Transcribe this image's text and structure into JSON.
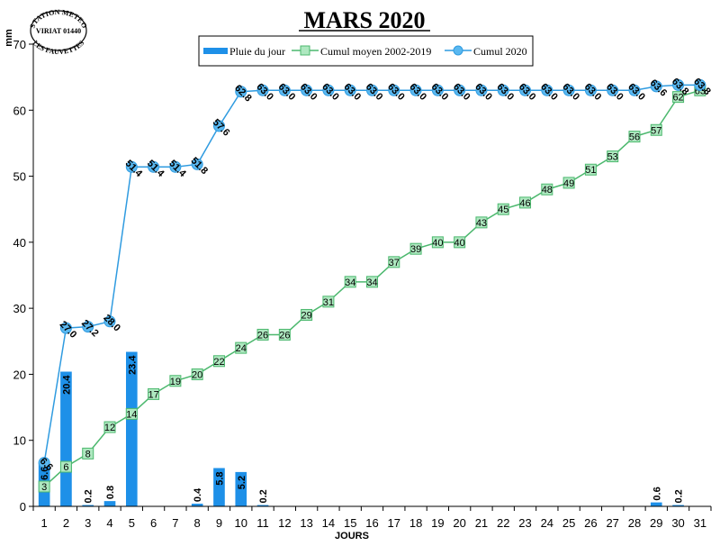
{
  "chart_data": {
    "type": "bar+line",
    "title": "MARS 2020",
    "ylabel": "mm",
    "xlabel": "JOURS",
    "ylim": [
      0,
      70
    ],
    "yticks": [
      0,
      10,
      20,
      30,
      40,
      50,
      60,
      70
    ],
    "categories": [
      1,
      2,
      3,
      4,
      5,
      6,
      7,
      8,
      9,
      10,
      11,
      12,
      13,
      14,
      15,
      16,
      17,
      18,
      19,
      20,
      21,
      22,
      23,
      24,
      25,
      26,
      27,
      28,
      29,
      30,
      31
    ],
    "legend_position": "top-center",
    "series": [
      {
        "name": "Pluie du jour",
        "kind": "bar",
        "color": "#1e90e8",
        "values": [
          6.6,
          20.4,
          0.2,
          0.8,
          23.4,
          0,
          0,
          0.4,
          5.8,
          5.2,
          0.2,
          0,
          0,
          0,
          0,
          0,
          0,
          0,
          0,
          0,
          0,
          0,
          0,
          0,
          0,
          0,
          0,
          0,
          0.6,
          0.2,
          0
        ],
        "labels": [
          "6.6",
          "20.4",
          "0.2",
          "0.8",
          "23.4",
          "",
          "",
          "0.4",
          "5.8",
          "5.2",
          "0.2",
          "",
          "",
          "",
          "",
          "",
          "",
          "",
          "",
          "",
          "",
          "",
          "",
          "",
          "",
          "",
          "",
          "",
          "0.6",
          "0.2",
          ""
        ]
      },
      {
        "name": "Cumul moyen 2002-2019",
        "kind": "line",
        "color": "#4cb86e",
        "marker_fill": "#aee8c0",
        "values": [
          3,
          6,
          8,
          12,
          14,
          17,
          19,
          20,
          22,
          24,
          26,
          26,
          29,
          31,
          34,
          34,
          37,
          39,
          40,
          40,
          43,
          45,
          46,
          48,
          49,
          51,
          53,
          56,
          57,
          62,
          63
        ],
        "labels": [
          "3",
          "6",
          "8",
          "12",
          "14",
          "17",
          "19",
          "20",
          "22",
          "24",
          "26",
          "26",
          "29",
          "31",
          "34",
          "34",
          "37",
          "39",
          "40",
          "40",
          "43",
          "45",
          "46",
          "48",
          "49",
          "51",
          "53",
          "56",
          "57",
          "62",
          "63"
        ]
      },
      {
        "name": "Cumul 2020",
        "kind": "line",
        "color": "#2f9be0",
        "marker_fill": "#5ab8f0",
        "values": [
          6.6,
          27.0,
          27.2,
          28.0,
          51.4,
          51.4,
          51.4,
          51.8,
          57.6,
          62.8,
          63.0,
          63.0,
          63.0,
          63.0,
          63.0,
          63.0,
          63.0,
          63.0,
          63.0,
          63.0,
          63.0,
          63.0,
          63.0,
          63.0,
          63.0,
          63.0,
          63.0,
          63.0,
          63.6,
          63.8,
          63.8
        ],
        "labels": [
          "6.6",
          "27.0",
          "27.2",
          "28.0",
          "51.4",
          "51.4",
          "51.4",
          "51.8",
          "57.6",
          "62.8",
          "63.0",
          "63.0",
          "63.0",
          "63.0",
          "63.0",
          "63.0",
          "63.0",
          "63.0",
          "63.0",
          "63.0",
          "63.0",
          "63.0",
          "63.0",
          "63.0",
          "63.0",
          "63.0",
          "63.0",
          "63.0",
          "63.6",
          "63.8",
          "63.8"
        ]
      }
    ]
  },
  "station_stamp": {
    "line1": "STATION METEO",
    "line2": "VIRIAT 01440",
    "line3": "LES FAUVETTES"
  }
}
